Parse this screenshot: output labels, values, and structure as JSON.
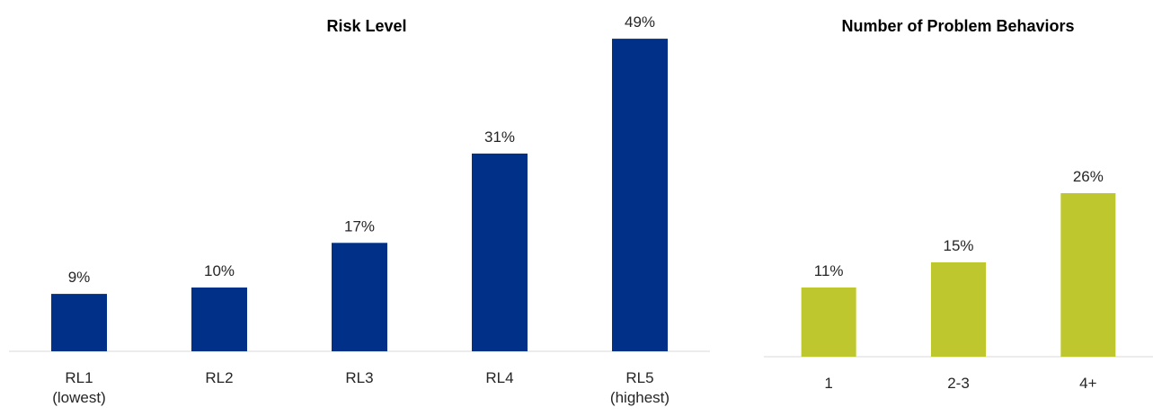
{
  "chart_data": [
    {
      "type": "bar",
      "title": "Risk Level",
      "categories": [
        [
          "RL1",
          "(lowest)"
        ],
        [
          "RL2"
        ],
        [
          "RL3"
        ],
        [
          "RL4"
        ],
        [
          "RL5",
          "(highest)"
        ]
      ],
      "values": [
        9,
        10,
        17,
        31,
        49
      ],
      "value_labels": [
        "9%",
        "10%",
        "17%",
        "31%",
        "49%"
      ],
      "xlabel": "",
      "ylabel": "",
      "ylim": [
        0,
        49
      ],
      "grid": false,
      "legend": "none",
      "bar_color": "#003087"
    },
    {
      "type": "bar",
      "title": "Number of Problem Behaviors",
      "categories": [
        [
          "1"
        ],
        [
          "2-3"
        ],
        [
          "4+"
        ]
      ],
      "values": [
        11,
        15,
        26
      ],
      "value_labels": [
        "11%",
        "15%",
        "26%"
      ],
      "xlabel": "",
      "ylabel": "",
      "ylim": [
        0,
        49
      ],
      "grid": false,
      "legend": "none",
      "bar_color": "#bec72e"
    }
  ]
}
